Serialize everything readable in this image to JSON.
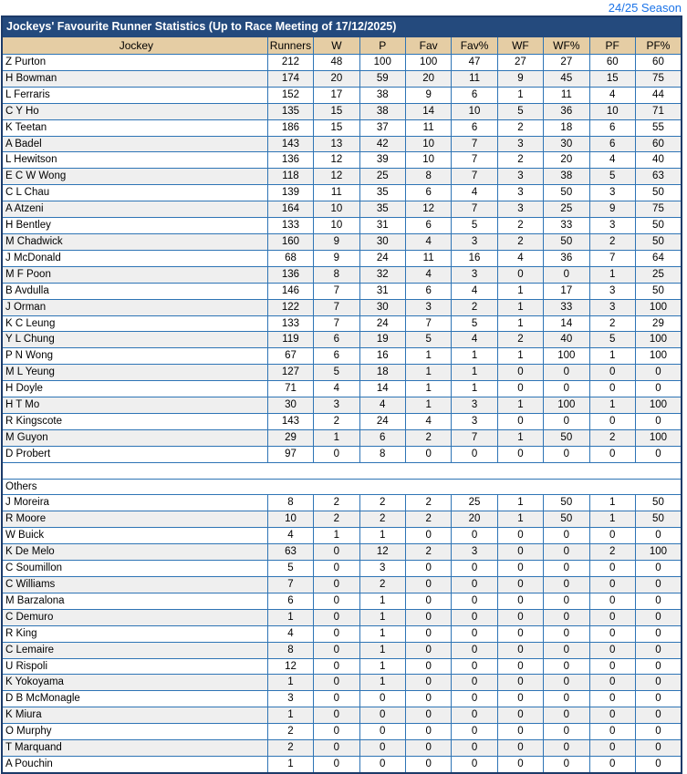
{
  "page": {
    "season_link": "24/25 Season",
    "link_color": "#1a73e8"
  },
  "table": {
    "title": "Jockeys' Favourite Runner Statistics (Up to Race Meeting of 17/12/2025)",
    "columns": [
      "Jockey",
      "Runners",
      "W",
      "P",
      "Fav",
      "Fav%",
      "WF",
      "WF%",
      "PF",
      "PF%"
    ],
    "colors": {
      "title_bg": "#244a7d",
      "title_text": "#ffffff",
      "header_bg": "#e5cda4",
      "grid_border": "#2e74b5",
      "outer_border": "#1c3a68",
      "stripe_bg": "#efefef"
    },
    "sections": [
      {
        "label": null,
        "rows": [
          [
            "Z Purton",
            212,
            48,
            100,
            100,
            47,
            27,
            27,
            60,
            60
          ],
          [
            "H Bowman",
            174,
            20,
            59,
            20,
            11,
            9,
            45,
            15,
            75
          ],
          [
            "L Ferraris",
            152,
            17,
            38,
            9,
            6,
            1,
            11,
            4,
            44
          ],
          [
            "C Y Ho",
            135,
            15,
            38,
            14,
            10,
            5,
            36,
            10,
            71
          ],
          [
            "K Teetan",
            186,
            15,
            37,
            11,
            6,
            2,
            18,
            6,
            55
          ],
          [
            "A Badel",
            143,
            13,
            42,
            10,
            7,
            3,
            30,
            6,
            60
          ],
          [
            "L Hewitson",
            136,
            12,
            39,
            10,
            7,
            2,
            20,
            4,
            40
          ],
          [
            "E C W Wong",
            118,
            12,
            25,
            8,
            7,
            3,
            38,
            5,
            63
          ],
          [
            "C L Chau",
            139,
            11,
            35,
            6,
            4,
            3,
            50,
            3,
            50
          ],
          [
            "A Atzeni",
            164,
            10,
            35,
            12,
            7,
            3,
            25,
            9,
            75
          ],
          [
            "H Bentley",
            133,
            10,
            31,
            6,
            5,
            2,
            33,
            3,
            50
          ],
          [
            "M Chadwick",
            160,
            9,
            30,
            4,
            3,
            2,
            50,
            2,
            50
          ],
          [
            "J McDonald",
            68,
            9,
            24,
            11,
            16,
            4,
            36,
            7,
            64
          ],
          [
            "M F Poon",
            136,
            8,
            32,
            4,
            3,
            0,
            0,
            1,
            25
          ],
          [
            "B Avdulla",
            146,
            7,
            31,
            6,
            4,
            1,
            17,
            3,
            50
          ],
          [
            "J Orman",
            122,
            7,
            30,
            3,
            2,
            1,
            33,
            3,
            100
          ],
          [
            "K C Leung",
            133,
            7,
            24,
            7,
            5,
            1,
            14,
            2,
            29
          ],
          [
            "Y L Chung",
            119,
            6,
            19,
            5,
            4,
            2,
            40,
            5,
            100
          ],
          [
            "P N Wong",
            67,
            6,
            16,
            1,
            1,
            1,
            100,
            1,
            100
          ],
          [
            "M L Yeung",
            127,
            5,
            18,
            1,
            1,
            0,
            0,
            0,
            0
          ],
          [
            "H Doyle",
            71,
            4,
            14,
            1,
            1,
            0,
            0,
            0,
            0
          ],
          [
            "H T Mo",
            30,
            3,
            4,
            1,
            3,
            1,
            100,
            1,
            100
          ],
          [
            "R Kingscote",
            143,
            2,
            24,
            4,
            3,
            0,
            0,
            0,
            0
          ],
          [
            "M Guyon",
            29,
            1,
            6,
            2,
            7,
            1,
            50,
            2,
            100
          ],
          [
            "D Probert",
            97,
            0,
            8,
            0,
            0,
            0,
            0,
            0,
            0
          ]
        ]
      },
      {
        "label": "Others",
        "rows": [
          [
            "J Moreira",
            8,
            2,
            2,
            2,
            25,
            1,
            50,
            1,
            50
          ],
          [
            "R Moore",
            10,
            2,
            2,
            2,
            20,
            1,
            50,
            1,
            50
          ],
          [
            "W Buick",
            4,
            1,
            1,
            0,
            0,
            0,
            0,
            0,
            0
          ],
          [
            "K De Melo",
            63,
            0,
            12,
            2,
            3,
            0,
            0,
            2,
            100
          ],
          [
            "C Soumillon",
            5,
            0,
            3,
            0,
            0,
            0,
            0,
            0,
            0
          ],
          [
            "C Williams",
            7,
            0,
            2,
            0,
            0,
            0,
            0,
            0,
            0
          ],
          [
            "M Barzalona",
            6,
            0,
            1,
            0,
            0,
            0,
            0,
            0,
            0
          ],
          [
            "C Demuro",
            1,
            0,
            1,
            0,
            0,
            0,
            0,
            0,
            0
          ],
          [
            "R King",
            4,
            0,
            1,
            0,
            0,
            0,
            0,
            0,
            0
          ],
          [
            "C Lemaire",
            8,
            0,
            1,
            0,
            0,
            0,
            0,
            0,
            0
          ],
          [
            "U Rispoli",
            12,
            0,
            1,
            0,
            0,
            0,
            0,
            0,
            0
          ],
          [
            "K Yokoyama",
            1,
            0,
            1,
            0,
            0,
            0,
            0,
            0,
            0
          ],
          [
            "D B McMonagle",
            3,
            0,
            0,
            0,
            0,
            0,
            0,
            0,
            0
          ],
          [
            "K Miura",
            1,
            0,
            0,
            0,
            0,
            0,
            0,
            0,
            0
          ],
          [
            "O Murphy",
            2,
            0,
            0,
            0,
            0,
            0,
            0,
            0,
            0
          ],
          [
            "T Marquand",
            2,
            0,
            0,
            0,
            0,
            0,
            0,
            0,
            0
          ],
          [
            "A Pouchin",
            1,
            0,
            0,
            0,
            0,
            0,
            0,
            0,
            0
          ]
        ]
      }
    ]
  }
}
